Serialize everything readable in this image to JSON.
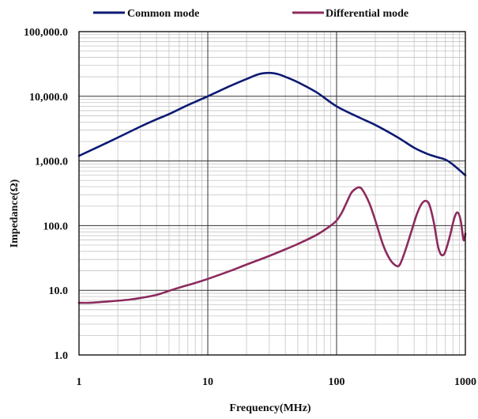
{
  "chart_data": {
    "type": "line",
    "title": "",
    "xlabel": "Frequency(MHz)",
    "ylabel": "Impedance(Ω)",
    "x_scale": "log",
    "y_scale": "log",
    "xlim": [
      1,
      1000
    ],
    "ylim": [
      1,
      100000
    ],
    "x_ticks": [
      {
        "value": 1,
        "label": "1"
      },
      {
        "value": 10,
        "label": "10"
      },
      {
        "value": 100,
        "label": "100"
      },
      {
        "value": 1000,
        "label": "1000"
      }
    ],
    "y_ticks": [
      {
        "value": 1,
        "label": "1.0"
      },
      {
        "value": 10,
        "label": "10.0"
      },
      {
        "value": 100,
        "label": "100.0"
      },
      {
        "value": 1000,
        "label": "1,000.0"
      },
      {
        "value": 10000,
        "label": "10,000.0"
      },
      {
        "value": 100000,
        "label": "100,000.0"
      }
    ],
    "grid": true,
    "legend": "top",
    "series": [
      {
        "name": "Common mode",
        "color": "#0d1a73",
        "points": [
          [
            1,
            1200
          ],
          [
            1.5,
            1750
          ],
          [
            2,
            2300
          ],
          [
            3,
            3400
          ],
          [
            4,
            4400
          ],
          [
            5,
            5300
          ],
          [
            7,
            7300
          ],
          [
            10,
            10000
          ],
          [
            15,
            14500
          ],
          [
            20,
            18500
          ],
          [
            25,
            22000
          ],
          [
            30,
            23000
          ],
          [
            35,
            22000
          ],
          [
            40,
            20000
          ],
          [
            50,
            16500
          ],
          [
            70,
            11500
          ],
          [
            100,
            7000
          ],
          [
            150,
            4700
          ],
          [
            200,
            3600
          ],
          [
            300,
            2300
          ],
          [
            400,
            1600
          ],
          [
            500,
            1300
          ],
          [
            600,
            1150
          ],
          [
            700,
            1050
          ],
          [
            800,
            880
          ],
          [
            1000,
            600
          ]
        ]
      },
      {
        "name": "Differential mode",
        "color": "#8c2b5e",
        "points": [
          [
            1,
            6.4
          ],
          [
            1.2,
            6.4
          ],
          [
            1.5,
            6.6
          ],
          [
            2,
            6.9
          ],
          [
            2.5,
            7.2
          ],
          [
            3,
            7.6
          ],
          [
            4,
            8.5
          ],
          [
            5,
            9.8
          ],
          [
            6,
            11
          ],
          [
            8,
            13
          ],
          [
            10,
            15
          ],
          [
            15,
            20
          ],
          [
            20,
            25
          ],
          [
            30,
            34
          ],
          [
            40,
            43
          ],
          [
            50,
            52
          ],
          [
            70,
            72
          ],
          [
            90,
            100
          ],
          [
            100,
            120
          ],
          [
            110,
            160
          ],
          [
            120,
            230
          ],
          [
            130,
            320
          ],
          [
            140,
            370
          ],
          [
            150,
            390
          ],
          [
            160,
            350
          ],
          [
            180,
            220
          ],
          [
            200,
            120
          ],
          [
            230,
            50
          ],
          [
            260,
            30
          ],
          [
            290,
            24
          ],
          [
            310,
            25
          ],
          [
            340,
            40
          ],
          [
            380,
            80
          ],
          [
            420,
            150
          ],
          [
            460,
            220
          ],
          [
            500,
            240
          ],
          [
            530,
            200
          ],
          [
            570,
            110
          ],
          [
            610,
            50
          ],
          [
            640,
            37
          ],
          [
            670,
            35
          ],
          [
            700,
            40
          ],
          [
            760,
            70
          ],
          [
            820,
            130
          ],
          [
            870,
            160
          ],
          [
            920,
            120
          ],
          [
            960,
            65
          ],
          [
            980,
            60
          ],
          [
            1000,
            75
          ]
        ]
      }
    ]
  }
}
